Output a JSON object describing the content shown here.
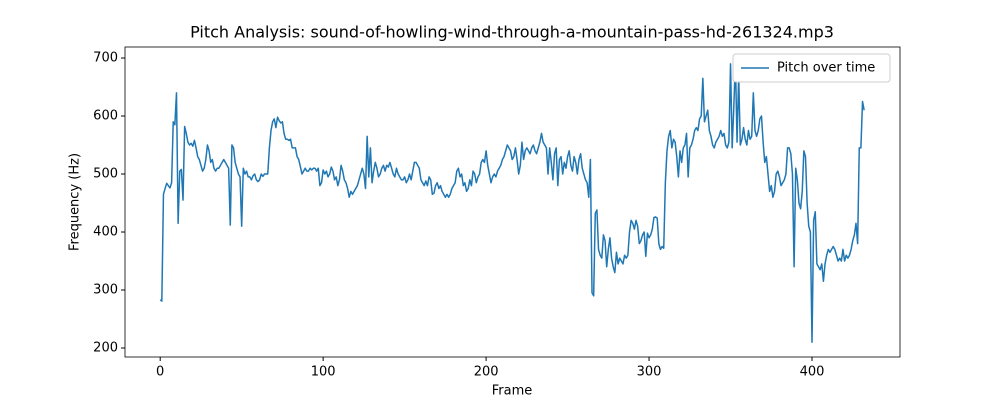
{
  "chart_data": {
    "type": "line",
    "title": "Pitch Analysis: sound-of-howling-wind-through-a-mountain-pass-hd-261324.mp3",
    "x_label": "Frame",
    "y_label": "Frequency (Hz)",
    "xlim": [
      -21.6,
      454
    ],
    "ylim": [
      184.5,
      719
    ],
    "xticks": [
      0,
      100,
      200,
      300,
      400
    ],
    "yticks": [
      200,
      300,
      400,
      500,
      600,
      700
    ],
    "grid": false,
    "legend": "upper right",
    "series": [
      {
        "name": "Pitch over time",
        "color": "#1f77b4",
        "x": [
          0,
          1,
          2,
          3,
          4,
          5,
          6,
          7,
          8,
          9,
          10,
          11,
          12,
          13,
          14,
          15,
          16,
          17,
          18,
          19,
          20,
          21,
          22,
          23,
          24,
          25,
          26,
          27,
          28,
          29,
          30,
          31,
          32,
          33,
          34,
          35,
          36,
          37,
          38,
          39,
          40,
          41,
          42,
          43,
          44,
          45,
          46,
          47,
          48,
          49,
          50,
          51,
          52,
          53,
          54,
          55,
          56,
          57,
          58,
          59,
          60,
          61,
          62,
          63,
          64,
          65,
          66,
          67,
          68,
          69,
          70,
          71,
          72,
          73,
          74,
          75,
          76,
          77,
          78,
          79,
          80,
          81,
          82,
          83,
          84,
          85,
          86,
          87,
          88,
          89,
          90,
          91,
          92,
          93,
          94,
          95,
          96,
          97,
          98,
          99,
          100,
          101,
          102,
          103,
          104,
          105,
          106,
          107,
          108,
          109,
          110,
          111,
          112,
          113,
          114,
          115,
          116,
          117,
          118,
          119,
          120,
          121,
          122,
          123,
          124,
          125,
          126,
          127,
          128,
          129,
          130,
          131,
          132,
          133,
          134,
          135,
          136,
          137,
          138,
          139,
          140,
          141,
          142,
          143,
          144,
          145,
          146,
          147,
          148,
          149,
          150,
          151,
          152,
          153,
          154,
          155,
          156,
          157,
          158,
          159,
          160,
          161,
          162,
          163,
          164,
          165,
          166,
          167,
          168,
          169,
          170,
          171,
          172,
          173,
          174,
          175,
          176,
          177,
          178,
          179,
          180,
          181,
          182,
          183,
          184,
          185,
          186,
          187,
          188,
          189,
          190,
          191,
          192,
          193,
          194,
          195,
          196,
          197,
          198,
          199,
          200,
          201,
          202,
          203,
          204,
          205,
          206,
          207,
          208,
          209,
          210,
          211,
          212,
          213,
          214,
          215,
          216,
          217,
          218,
          219,
          220,
          221,
          222,
          223,
          224,
          225,
          226,
          227,
          228,
          229,
          230,
          231,
          232,
          233,
          234,
          235,
          236,
          237,
          238,
          239,
          240,
          241,
          242,
          243,
          244,
          245,
          246,
          247,
          248,
          249,
          250,
          251,
          252,
          253,
          254,
          255,
          256,
          257,
          258,
          259,
          260,
          261,
          262,
          263,
          264,
          265,
          266,
          267,
          268,
          269,
          270,
          271,
          272,
          273,
          274,
          275,
          276,
          277,
          278,
          279,
          280,
          281,
          282,
          283,
          284,
          285,
          286,
          287,
          288,
          289,
          290,
          291,
          292,
          293,
          294,
          295,
          296,
          297,
          298,
          299,
          300,
          301,
          302,
          303,
          304,
          305,
          306,
          307,
          308,
          309,
          310,
          311,
          312,
          313,
          314,
          315,
          316,
          317,
          318,
          319,
          320,
          321,
          322,
          323,
          324,
          325,
          326,
          327,
          328,
          329,
          330,
          331,
          332,
          333,
          334,
          335,
          336,
          337,
          338,
          339,
          340,
          341,
          342,
          343,
          344,
          345,
          346,
          347,
          348,
          349,
          350,
          351,
          352,
          353,
          354,
          355,
          356,
          357,
          358,
          359,
          360,
          361,
          362,
          363,
          364,
          365,
          366,
          367,
          368,
          369,
          370,
          371,
          372,
          373,
          374,
          375,
          376,
          377,
          378,
          379,
          380,
          381,
          382,
          383,
          384,
          385,
          386,
          387,
          388,
          389,
          390,
          391,
          392,
          393,
          394,
          395,
          396,
          397,
          398,
          399,
          400,
          401,
          402,
          403,
          404,
          405,
          406,
          407,
          408,
          409,
          410,
          411,
          412,
          413,
          414,
          415,
          416,
          417,
          418,
          419,
          420,
          421,
          422,
          423,
          424,
          425,
          426,
          427,
          428,
          429,
          430,
          431,
          432
        ],
        "values": [
          283,
          281,
          465,
          475,
          484,
          480,
          476,
          485,
          590,
          585,
          640,
          415,
          505,
          508,
          455,
          582,
          570,
          555,
          550,
          553,
          548,
          558,
          545,
          530,
          525,
          515,
          505,
          510,
          525,
          550,
          540,
          520,
          525,
          510,
          505,
          510,
          510,
          515,
          520,
          525,
          520,
          515,
          510,
          412,
          550,
          545,
          520,
          510,
          500,
          495,
          410,
          510,
          500,
          505,
          495,
          495,
          490,
          497,
          500,
          490,
          487,
          490,
          500,
          496,
          500,
          500,
          500,
          545,
          575,
          590,
          595,
          580,
          598,
          592,
          588,
          590,
          570,
          560,
          560,
          558,
          560,
          545,
          545,
          545,
          530,
          525,
          513,
          500,
          505,
          510,
          505,
          505,
          510,
          507,
          510,
          510,
          505,
          510,
          480,
          485,
          507,
          500,
          505,
          495,
          500,
          512,
          505,
          490,
          495,
          480,
          490,
          515,
          505,
          490,
          485,
          475,
          460,
          470,
          465,
          470,
          475,
          480,
          490,
          500,
          510,
          500,
          475,
          565,
          495,
          545,
          485,
          505,
          520,
          510,
          495,
          500,
          510,
          515,
          505,
          515,
          512,
          520,
          510,
          500,
          495,
          510,
          500,
          495,
          490,
          490,
          495,
          485,
          490,
          500,
          490,
          505,
          520,
          520,
          515,
          510,
          490,
          485,
          480,
          488,
          480,
          495,
          490,
          465,
          467,
          480,
          485,
          475,
          480,
          470,
          465,
          460,
          465,
          460,
          465,
          475,
          480,
          485,
          505,
          510,
          495,
          500,
          480,
          485,
          470,
          475,
          490,
          480,
          505,
          500,
          485,
          495,
          500,
          520,
          525,
          520,
          540,
          515,
          500,
          485,
          495,
          500,
          495,
          505,
          510,
          515,
          525,
          530,
          540,
          550,
          545,
          540,
          525,
          530,
          545,
          525,
          500,
          515,
          555,
          525,
          540,
          545,
          540,
          535,
          545,
          550,
          540,
          535,
          545,
          555,
          570,
          555,
          550,
          545,
          500,
          545,
          520,
          490,
          535,
          545,
          480,
          525,
          530,
          500,
          520,
          510,
          530,
          540,
          515,
          505,
          530,
          520,
          500,
          525,
          535,
          510,
          500,
          490,
          485,
          460,
          525,
          295,
          290,
          432,
          438,
          370,
          360,
          355,
          395,
          385,
          340,
          370,
          390,
          355,
          340,
          330,
          365,
          345,
          355,
          350,
          345,
          360,
          355,
          360,
          400,
          420,
          415,
          405,
          420,
          410,
          380,
          385,
          395,
          400,
          358,
          398,
          390,
          395,
          405,
          425,
          426,
          424,
          380,
          370,
          375,
          372,
          485,
          540,
          565,
          575,
          545,
          560,
          555,
          530,
          495,
          540,
          520,
          545,
          550,
          570,
          495,
          545,
          550,
          560,
          575,
          580,
          575,
          595,
          600,
          665,
          590,
          600,
          610,
          575,
          565,
          550,
          545,
          555,
          560,
          565,
          575,
          565,
          570,
          550,
          545,
          555,
          690,
          545,
          615,
          695,
          555,
          670,
          550,
          560,
          580,
          560,
          550,
          575,
          560,
          565,
          640,
          575,
          565,
          575,
          595,
          600,
          555,
          520,
          530,
          500,
          470,
          480,
          460,
          470,
          500,
          505,
          495,
          480,
          485,
          490,
          500,
          545,
          545,
          535,
          500,
          340,
          510,
          490,
          450,
          440,
          470,
          540,
          530,
          450,
          410,
          400,
          210,
          420,
          435,
          345,
          340,
          335,
          345,
          315,
          345,
          360,
          370,
          365,
          370,
          375,
          370,
          360,
          350,
          355,
          350,
          370,
          350,
          360,
          355,
          360,
          370,
          385,
          395,
          415,
          380,
          545,
          545,
          625,
          610
        ]
      }
    ]
  }
}
